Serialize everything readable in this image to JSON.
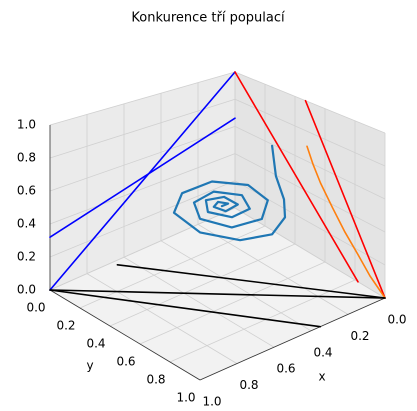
{
  "chart_data": {
    "type": "line3d",
    "title": "Konkurence tří populací",
    "xlabel": "x",
    "ylabel": "y",
    "xlim": [
      0,
      1
    ],
    "ylim": [
      0,
      1
    ],
    "zlim": [
      0,
      1
    ],
    "xticks": [
      {
        "value": 0,
        "label": "0.0"
      },
      0.2,
      0.4,
      0.6,
      0.8,
      {
        "value": 1,
        "label": "1.0"
      }
    ],
    "yticks": [
      {
        "value": 0,
        "label": "0.0"
      },
      0.2,
      0.4,
      0.6,
      0.8,
      {
        "value": 1,
        "label": "1.0"
      }
    ],
    "zticks": [
      {
        "value": 0,
        "label": "0.0"
      },
      0.2,
      0.4,
      0.6,
      0.8,
      {
        "value": 1,
        "label": "1.0"
      }
    ],
    "grid": true,
    "series": [
      {
        "color": "#0000ff",
        "x": [
          1,
          0
        ],
        "y": [
          0,
          0
        ],
        "z": [
          0,
          1
        ]
      },
      {
        "color": "#0000ff",
        "x": [
          1,
          0
        ],
        "y": [
          0,
          0
        ],
        "z": [
          0.32,
          0.66
        ]
      },
      {
        "color": "#ff0000",
        "x": [
          0,
          0
        ],
        "y": [
          0,
          0.82
        ],
        "z": [
          1,
          0
        ]
      },
      {
        "color": "#ff0000",
        "x": [
          0,
          0
        ],
        "y": [
          0.47,
          1
        ],
        "z": [
          1,
          0
        ]
      },
      {
        "color": "#ff7f0e",
        "x": [
          0,
          0,
          0,
          0,
          0,
          0,
          0,
          0
        ],
        "y": [
          0.48,
          0.52,
          0.57,
          0.65,
          0.73,
          0.82,
          0.9,
          1
        ],
        "z": [
          0.7,
          0.6,
          0.5,
          0.38,
          0.27,
          0.17,
          0.08,
          0
        ]
      },
      {
        "color": "#000000",
        "x": [
          1,
          0
        ],
        "y": [
          0,
          1
        ],
        "z": [
          0,
          0
        ]
      },
      {
        "color": "#000000",
        "x": [
          1,
          0.35
        ],
        "y": [
          0,
          1
        ],
        "z": [
          0,
          0
        ]
      },
      {
        "color": "#000000",
        "x": [
          0.66,
          0
        ],
        "y": [
          0.03,
          1
        ],
        "z": [
          0,
          0
        ]
      },
      {
        "color": "#1f77b4",
        "x": [
          0.213,
          0.193,
          0.216,
          0.274,
          0.418,
          0.554,
          0.632,
          0.593,
          0.449,
          0.284,
          0.192,
          0.224,
          0.357,
          0.502,
          0.549,
          0.469,
          0.34,
          0.274,
          0.332,
          0.439,
          0.483,
          0.417,
          0.34,
          0.343,
          0.422,
          0.433,
          0.389,
          0.368,
          0.403
        ],
        "y": [
          0.51,
          0.511,
          0.593,
          0.671,
          0.763,
          0.717,
          0.546,
          0.325,
          0.201,
          0.197,
          0.324,
          0.495,
          0.619,
          0.598,
          0.444,
          0.305,
          0.278,
          0.384,
          0.508,
          0.521,
          0.415,
          0.32,
          0.346,
          0.442,
          0.459,
          0.393,
          0.367,
          0.408,
          0.41
        ],
        "z": [
          0.8,
          0.6,
          0.5,
          0.45,
          0.45,
          0.45,
          0.45,
          0.45,
          0.45,
          0.45,
          0.45,
          0.45,
          0.45,
          0.45,
          0.45,
          0.45,
          0.45,
          0.45,
          0.45,
          0.45,
          0.45,
          0.45,
          0.45,
          0.45,
          0.45,
          0.45,
          0.45,
          0.45,
          0.45
        ]
      }
    ]
  }
}
